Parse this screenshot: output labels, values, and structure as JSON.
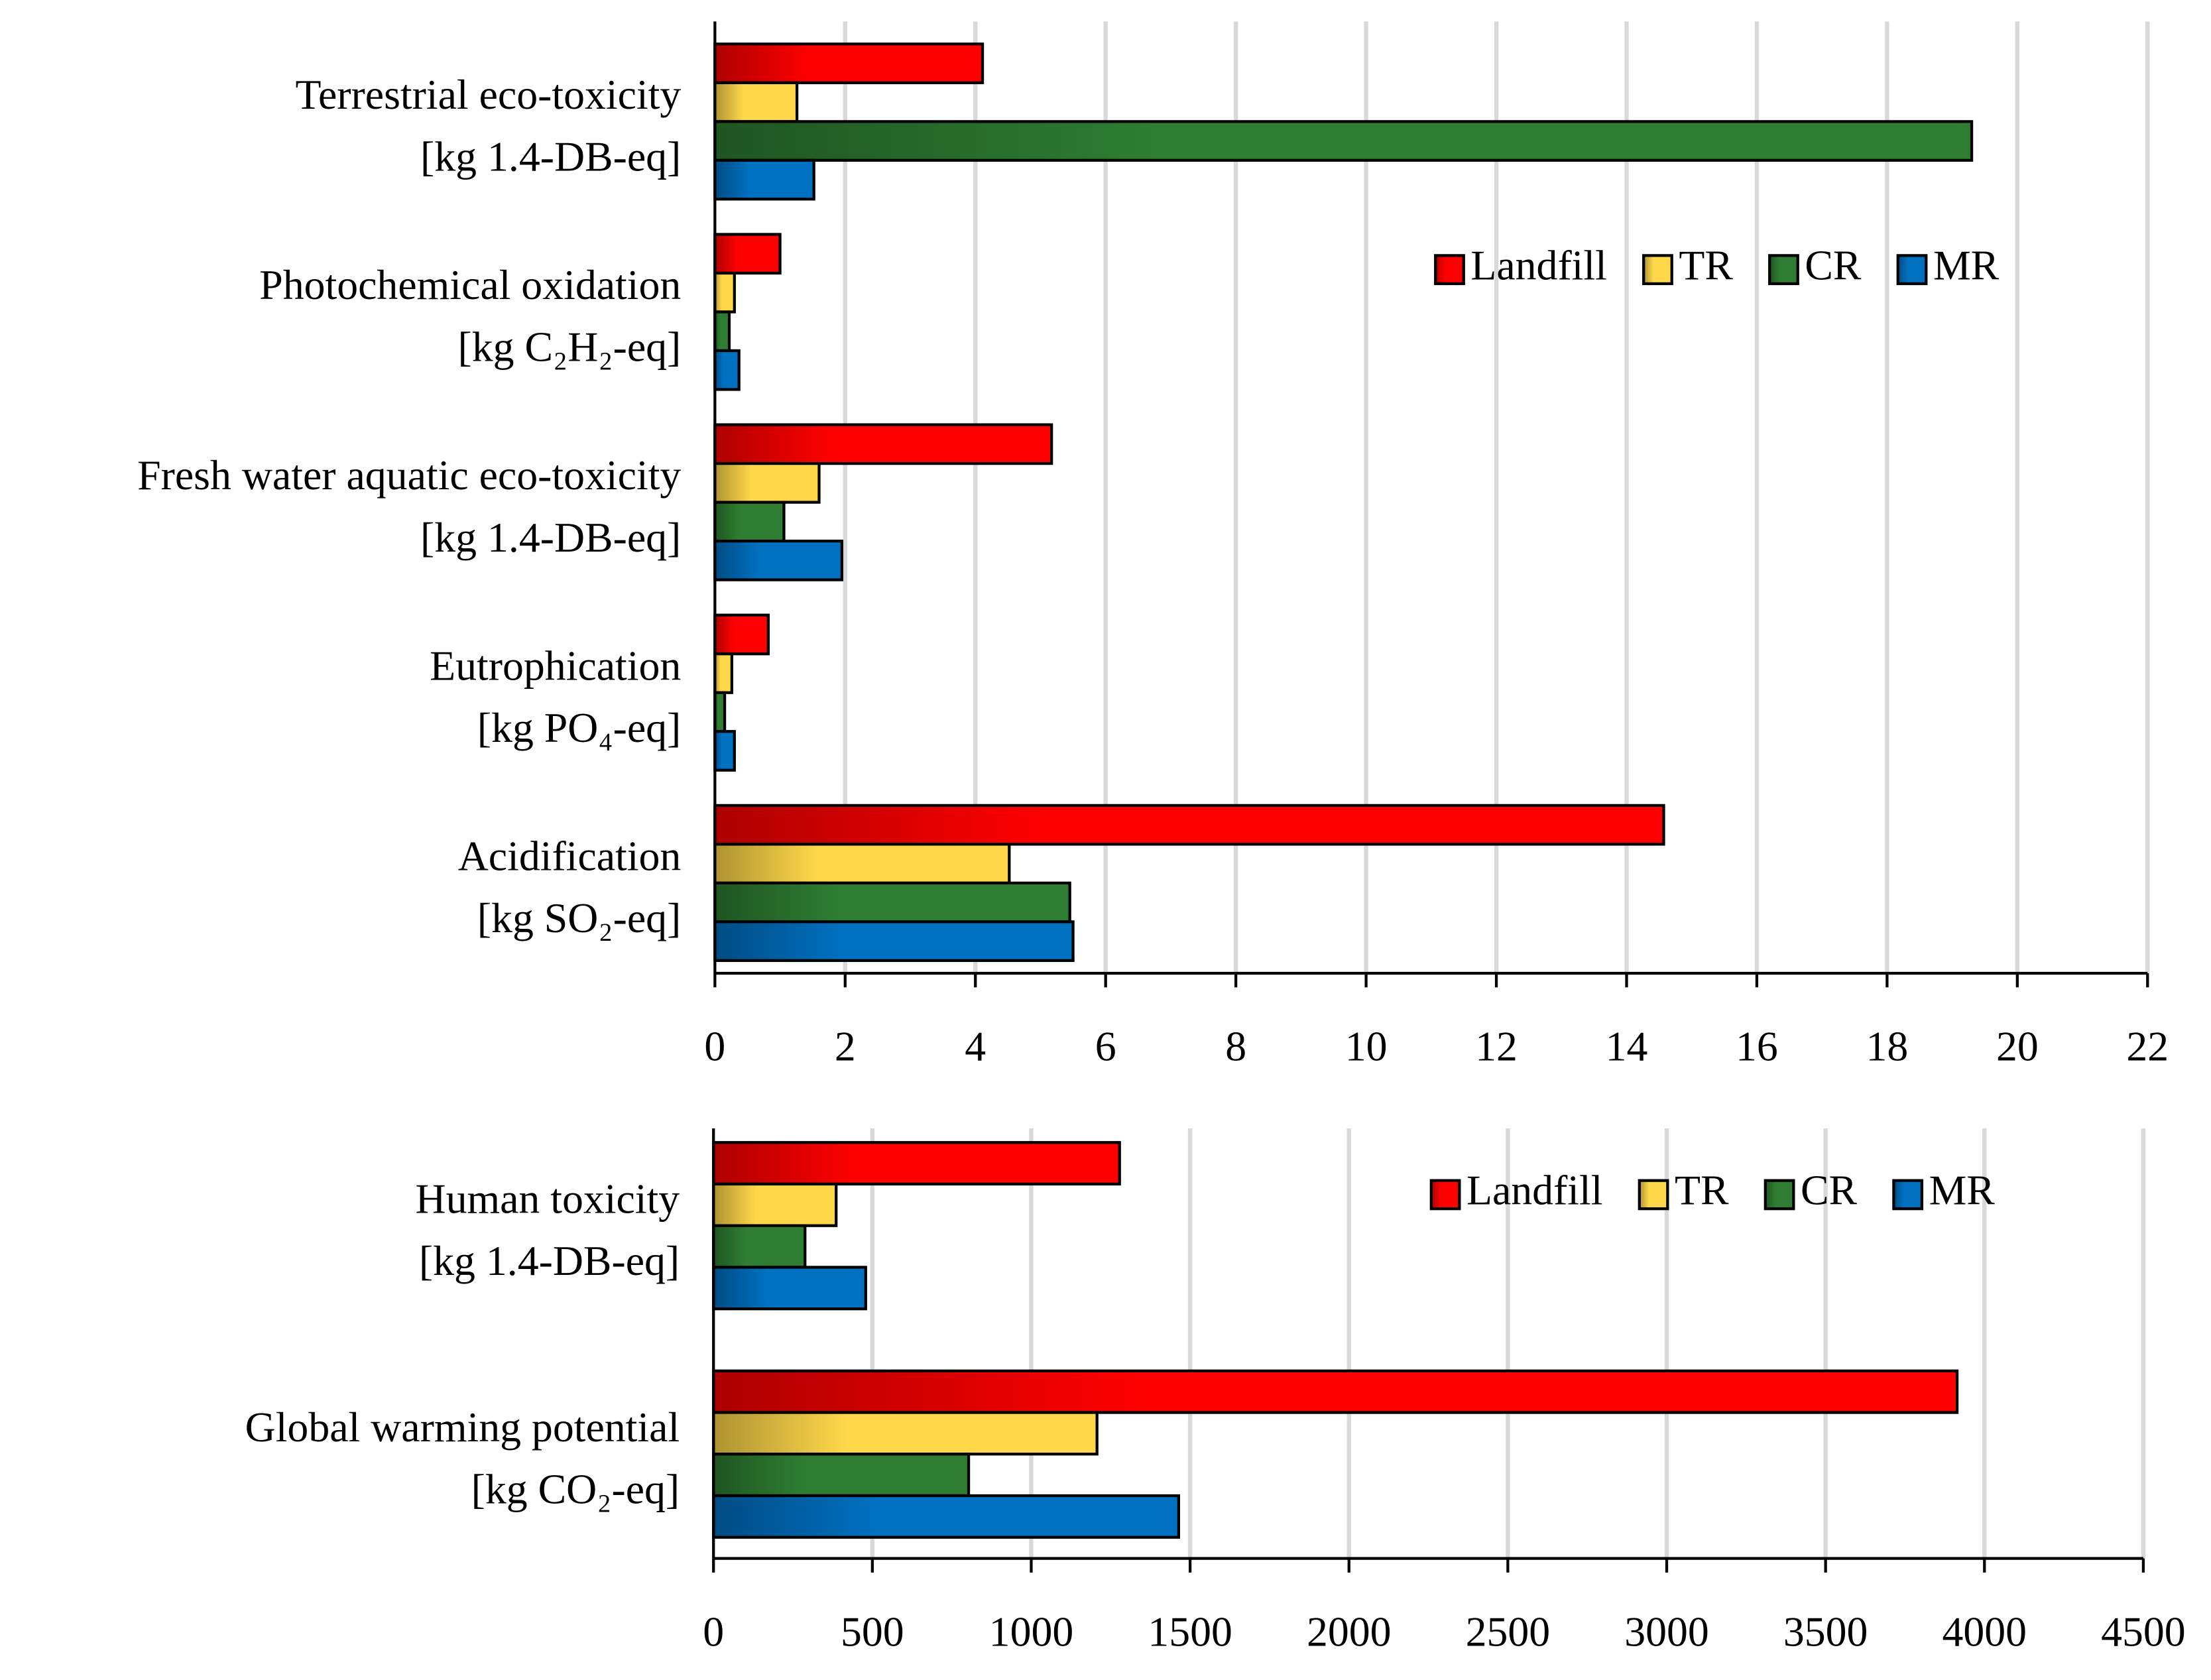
{
  "chart_data": [
    {
      "type": "bar",
      "orientation": "horizontal",
      "legend": "upper right",
      "grid": true,
      "categories": [
        [
          "Terrestrial eco-toxicity",
          "[kg 1.4-DB-eq]"
        ],
        [
          "Photochemical oxidation",
          "[kg C₂H₂-eq]"
        ],
        [
          "Fresh water aquatic eco-toxicity",
          "[kg 1.4-DB-eq]"
        ],
        [
          "Eutrophication",
          "[kg PO₄-eq]"
        ],
        [
          "Acidification",
          "[kg SO₂-eq]"
        ]
      ],
      "series": [
        {
          "name": "Landfill",
          "color": "#ff0000",
          "values": [
            4.11,
            1.0,
            5.17,
            0.82,
            14.57
          ]
        },
        {
          "name": "TR",
          "color": "#ffd84a",
          "values": [
            1.26,
            0.3,
            1.6,
            0.26,
            4.52
          ]
        },
        {
          "name": "CR",
          "color": "#2e7d32",
          "values": [
            19.3,
            0.22,
            1.06,
            0.15,
            5.45
          ]
        },
        {
          "name": "MR",
          "color": "#0070c0",
          "values": [
            1.52,
            0.37,
            1.95,
            0.3,
            5.5
          ]
        }
      ],
      "xlim": [
        0,
        22
      ],
      "xticks": [
        0,
        2,
        4,
        6,
        8,
        10,
        12,
        14,
        16,
        18,
        20,
        22
      ]
    },
    {
      "type": "bar",
      "orientation": "horizontal",
      "legend": "upper right",
      "grid": true,
      "categories": [
        [
          "Human toxicity",
          "[kg 1.4-DB-eq]"
        ],
        [
          "Global warming potential",
          "[kg CO₂-eq]"
        ]
      ],
      "series": [
        {
          "name": "Landfill",
          "color": "#ff0000",
          "values": [
            1278,
            3914
          ]
        },
        {
          "name": "TR",
          "color": "#ffd84a",
          "values": [
            386,
            1207
          ]
        },
        {
          "name": "CR",
          "color": "#2e7d32",
          "values": [
            288,
            803
          ]
        },
        {
          "name": "MR",
          "color": "#0070c0",
          "values": [
            479,
            1464
          ]
        }
      ],
      "xlim": [
        0,
        4500
      ],
      "xticks": [
        0,
        500,
        1000,
        1500,
        2000,
        2500,
        3000,
        3500,
        4000,
        4500
      ]
    }
  ]
}
